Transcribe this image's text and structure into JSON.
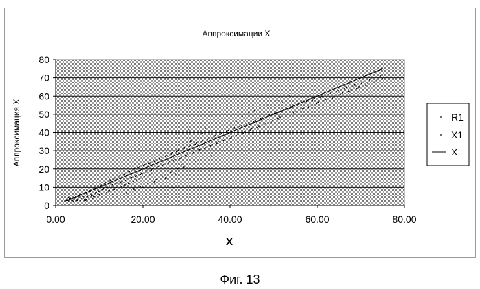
{
  "figure_caption": "Фиг. 13",
  "chart_data": {
    "type": "scatter",
    "title": "Аппроксимации X",
    "xlabel": "X",
    "ylabel": "Аппроксимация X",
    "xlim": [
      0,
      80
    ],
    "ylim": [
      0,
      80
    ],
    "x_ticks": [
      "0.00",
      "20.00",
      "40.00",
      "60.00",
      "80.00"
    ],
    "y_ticks": [
      "0",
      "10",
      "20",
      "30",
      "40",
      "50",
      "60",
      "70",
      "80"
    ],
    "grid": "horizontal",
    "plot_background": "#cfcfcf",
    "legend_position": "right",
    "legend": [
      "R1",
      "X1",
      "X"
    ],
    "series": [
      {
        "name": "R1",
        "marker": "dot",
        "points": [
          [
            2.6,
            3.1
          ],
          [
            3.0,
            2.2
          ],
          [
            3.4,
            4.0
          ],
          [
            3.8,
            2.8
          ],
          [
            4.2,
            3.5
          ],
          [
            4.6,
            5.0
          ],
          [
            5.0,
            3.0
          ],
          [
            5.3,
            4.6
          ],
          [
            5.7,
            2.6
          ],
          [
            6.1,
            6.2
          ],
          [
            6.5,
            4.1
          ],
          [
            6.9,
            7.0
          ],
          [
            7.3,
            5.1
          ],
          [
            7.7,
            8.2
          ],
          [
            8.1,
            6.0
          ],
          [
            8.5,
            3.8
          ],
          [
            8.9,
            9.0
          ],
          [
            9.3,
            7.1
          ],
          [
            9.7,
            10.5
          ],
          [
            10.2,
            8.4
          ],
          [
            10.6,
            11.5
          ],
          [
            11.0,
            9.2
          ],
          [
            11.5,
            12.6
          ],
          [
            12.0,
            10.1
          ],
          [
            12.5,
            13.8
          ],
          [
            13.0,
            11.5
          ],
          [
            13.6,
            15.0
          ],
          [
            14.1,
            12.2
          ],
          [
            14.6,
            16.3
          ],
          [
            15.2,
            13.0
          ],
          [
            15.8,
            17.1
          ],
          [
            16.3,
            14.5
          ],
          [
            16.9,
            18.6
          ],
          [
            17.4,
            15.3
          ],
          [
            18.0,
            20.0
          ],
          [
            18.6,
            16.4
          ],
          [
            19.2,
            21.3
          ],
          [
            19.8,
            17.5
          ],
          [
            20.4,
            22.5
          ],
          [
            21.0,
            19.0
          ],
          [
            21.7,
            23.6
          ],
          [
            22.3,
            20.2
          ],
          [
            22.9,
            25.0
          ],
          [
            23.5,
            21.4
          ],
          [
            24.2,
            26.3
          ],
          [
            24.8,
            22.6
          ],
          [
            25.5,
            27.5
          ],
          [
            26.1,
            24.0
          ],
          [
            26.8,
            29.0
          ],
          [
            27.4,
            25.1
          ],
          [
            28.1,
            30.3
          ],
          [
            28.8,
            26.5
          ],
          [
            29.5,
            31.6
          ],
          [
            30.2,
            28.0
          ],
          [
            30.9,
            33.0
          ],
          [
            31.6,
            29.1
          ],
          [
            32.3,
            34.2
          ],
          [
            33.0,
            30.5
          ],
          [
            33.7,
            35.5
          ],
          [
            34.4,
            32.0
          ],
          [
            35.1,
            37.0
          ],
          [
            35.9,
            33.4
          ],
          [
            36.6,
            38.3
          ],
          [
            37.3,
            35.0
          ],
          [
            38.1,
            39.6
          ],
          [
            38.8,
            36.1
          ],
          [
            39.6,
            41.0
          ],
          [
            40.3,
            37.6
          ],
          [
            41.0,
            42.5
          ],
          [
            41.8,
            39.1
          ],
          [
            42.6,
            44.0
          ],
          [
            43.4,
            40.6
          ],
          [
            44.2,
            45.3
          ],
          [
            45.0,
            42.2
          ],
          [
            45.8,
            46.8
          ],
          [
            46.6,
            43.5
          ],
          [
            47.4,
            48.0
          ],
          [
            48.2,
            45.1
          ],
          [
            49.0,
            49.6
          ],
          [
            49.8,
            46.7
          ],
          [
            50.6,
            51.2
          ],
          [
            51.5,
            48.3
          ],
          [
            52.3,
            52.6
          ],
          [
            53.2,
            50.1
          ],
          [
            54.0,
            54.0
          ],
          [
            54.9,
            51.6
          ],
          [
            55.8,
            55.5
          ],
          [
            56.7,
            53.2
          ],
          [
            57.5,
            57.0
          ],
          [
            58.4,
            55.0
          ],
          [
            59.3,
            58.6
          ],
          [
            60.2,
            56.6
          ],
          [
            61.1,
            60.0
          ],
          [
            62.0,
            58.2
          ],
          [
            63.0,
            61.6
          ],
          [
            63.9,
            60.0
          ],
          [
            64.8,
            63.1
          ],
          [
            65.8,
            61.7
          ],
          [
            66.7,
            64.8
          ],
          [
            67.7,
            63.3
          ],
          [
            68.6,
            66.2
          ],
          [
            69.6,
            65.0
          ],
          [
            70.5,
            68.0
          ],
          [
            71.5,
            66.8
          ],
          [
            72.5,
            69.5
          ],
          [
            73.5,
            68.6
          ],
          [
            74.5,
            71.0
          ],
          [
            75.5,
            70.2
          ],
          [
            2.9,
            4.4
          ],
          [
            4.1,
            2.1
          ],
          [
            5.5,
            5.6
          ],
          [
            7.0,
            3.3
          ],
          [
            8.8,
            5.0
          ],
          [
            10.5,
            6.3
          ],
          [
            12.3,
            8.0
          ],
          [
            14.0,
            9.7
          ],
          [
            15.9,
            11.3
          ],
          [
            17.8,
            13.0
          ],
          [
            19.6,
            14.8
          ],
          [
            21.5,
            16.7
          ],
          [
            16.2,
            6.8
          ],
          [
            17.9,
            9.0
          ],
          [
            19.5,
            10.5
          ],
          [
            21.1,
            12.0
          ],
          [
            23.0,
            14.3
          ],
          [
            24.6,
            16.0
          ],
          [
            26.4,
            18.2
          ],
          [
            28.0,
            20.1
          ],
          [
            27.0,
            9.6
          ],
          [
            28.8,
            22.5
          ],
          [
            32.1,
            24.0
          ],
          [
            30.5,
            41.8
          ],
          [
            33.6,
            39.4
          ],
          [
            35.7,
            27.5
          ],
          [
            40.2,
            44.1
          ],
          [
            41.5,
            46.3
          ],
          [
            44.3,
            50.8
          ],
          [
            46.9,
            53.5
          ],
          [
            48.5,
            55.0
          ],
          [
            52.0,
            56.3
          ]
        ]
      },
      {
        "name": "X1",
        "marker": "dot",
        "points": [
          [
            2.4,
            2.8
          ],
          [
            3.2,
            3.9
          ],
          [
            3.6,
            2.4
          ],
          [
            4.4,
            4.3
          ],
          [
            4.8,
            2.9
          ],
          [
            5.2,
            5.3
          ],
          [
            5.9,
            3.7
          ],
          [
            6.3,
            4.9
          ],
          [
            6.7,
            3.4
          ],
          [
            7.1,
            6.6
          ],
          [
            7.5,
            4.6
          ],
          [
            7.9,
            7.5
          ],
          [
            8.3,
            5.5
          ],
          [
            8.7,
            8.6
          ],
          [
            9.1,
            6.5
          ],
          [
            9.5,
            9.5
          ],
          [
            9.9,
            7.7
          ],
          [
            10.4,
            11.0
          ],
          [
            10.8,
            8.8
          ],
          [
            11.3,
            12.0
          ],
          [
            11.8,
            9.6
          ],
          [
            12.3,
            13.3
          ],
          [
            12.8,
            10.7
          ],
          [
            13.3,
            14.4
          ],
          [
            13.8,
            11.9
          ],
          [
            14.4,
            15.6
          ],
          [
            14.9,
            12.6
          ],
          [
            15.5,
            16.8
          ],
          [
            16.0,
            13.6
          ],
          [
            16.6,
            17.9
          ],
          [
            17.1,
            14.8
          ],
          [
            17.7,
            19.3
          ],
          [
            18.3,
            15.9
          ],
          [
            18.9,
            20.7
          ],
          [
            19.5,
            17.0
          ],
          [
            20.1,
            21.9
          ],
          [
            20.7,
            18.2
          ],
          [
            21.4,
            23.1
          ],
          [
            22.0,
            19.5
          ],
          [
            22.6,
            24.3
          ],
          [
            23.2,
            20.6
          ],
          [
            23.8,
            25.6
          ],
          [
            24.5,
            21.9
          ],
          [
            25.2,
            26.9
          ],
          [
            25.8,
            23.3
          ],
          [
            26.5,
            28.2
          ],
          [
            27.1,
            24.5
          ],
          [
            27.8,
            29.6
          ],
          [
            28.5,
            25.8
          ],
          [
            29.2,
            31.0
          ],
          [
            29.9,
            27.2
          ],
          [
            30.6,
            32.3
          ],
          [
            31.3,
            28.5
          ],
          [
            32.0,
            33.6
          ],
          [
            32.7,
            29.8
          ],
          [
            33.4,
            34.9
          ],
          [
            34.1,
            31.2
          ],
          [
            34.8,
            36.2
          ],
          [
            35.5,
            32.7
          ],
          [
            36.3,
            37.6
          ],
          [
            37.0,
            34.1
          ],
          [
            37.7,
            39.0
          ],
          [
            38.5,
            35.6
          ],
          [
            39.2,
            40.3
          ],
          [
            40.0,
            36.8
          ],
          [
            40.7,
            41.8
          ],
          [
            41.4,
            38.4
          ],
          [
            42.2,
            43.2
          ],
          [
            43.0,
            39.8
          ],
          [
            43.8,
            44.6
          ],
          [
            44.6,
            41.3
          ],
          [
            45.4,
            46.0
          ],
          [
            46.2,
            42.8
          ],
          [
            47.0,
            47.4
          ],
          [
            47.8,
            44.3
          ],
          [
            48.6,
            48.8
          ],
          [
            49.4,
            45.9
          ],
          [
            50.2,
            50.4
          ],
          [
            51.0,
            47.5
          ],
          [
            51.9,
            51.9
          ],
          [
            52.8,
            49.0
          ],
          [
            53.6,
            53.3
          ],
          [
            54.5,
            50.8
          ],
          [
            55.4,
            54.7
          ],
          [
            56.2,
            52.4
          ],
          [
            57.1,
            56.2
          ],
          [
            58.0,
            54.0
          ],
          [
            58.9,
            57.8
          ],
          [
            59.8,
            55.8
          ],
          [
            60.7,
            59.3
          ],
          [
            61.6,
            57.3
          ],
          [
            62.5,
            60.8
          ],
          [
            63.5,
            58.9
          ],
          [
            64.4,
            62.4
          ],
          [
            65.3,
            60.8
          ],
          [
            66.3,
            64.0
          ],
          [
            67.2,
            62.5
          ],
          [
            68.2,
            65.5
          ],
          [
            69.1,
            64.2
          ],
          [
            70.1,
            67.1
          ],
          [
            71.0,
            66.0
          ],
          [
            72.0,
            68.8
          ],
          [
            73.0,
            67.7
          ],
          [
            74.0,
            70.3
          ],
          [
            75.0,
            69.4
          ],
          [
            5.0,
            2.5
          ],
          [
            6.8,
            2.9
          ],
          [
            8.6,
            4.1
          ],
          [
            10.0,
            5.8
          ],
          [
            11.7,
            7.2
          ],
          [
            13.4,
            8.9
          ],
          [
            15.1,
            10.4
          ],
          [
            16.8,
            12.1
          ],
          [
            18.6,
            13.9
          ],
          [
            20.3,
            15.8
          ],
          [
            22.1,
            17.5
          ],
          [
            13.0,
            6.1
          ],
          [
            18.2,
            8.1
          ],
          [
            20.0,
            10.0
          ],
          [
            22.6,
            12.8
          ],
          [
            25.3,
            15.0
          ],
          [
            27.6,
            17.3
          ],
          [
            29.4,
            21.0
          ],
          [
            31.0,
            35.3
          ],
          [
            34.4,
            42.0
          ],
          [
            36.8,
            45.2
          ],
          [
            42.8,
            48.7
          ],
          [
            45.6,
            52.0
          ],
          [
            50.8,
            57.5
          ],
          [
            53.7,
            60.5
          ]
        ]
      },
      {
        "name": "X",
        "marker": "line",
        "points": [
          [
            2,
            2
          ],
          [
            75,
            75
          ]
        ]
      }
    ]
  }
}
